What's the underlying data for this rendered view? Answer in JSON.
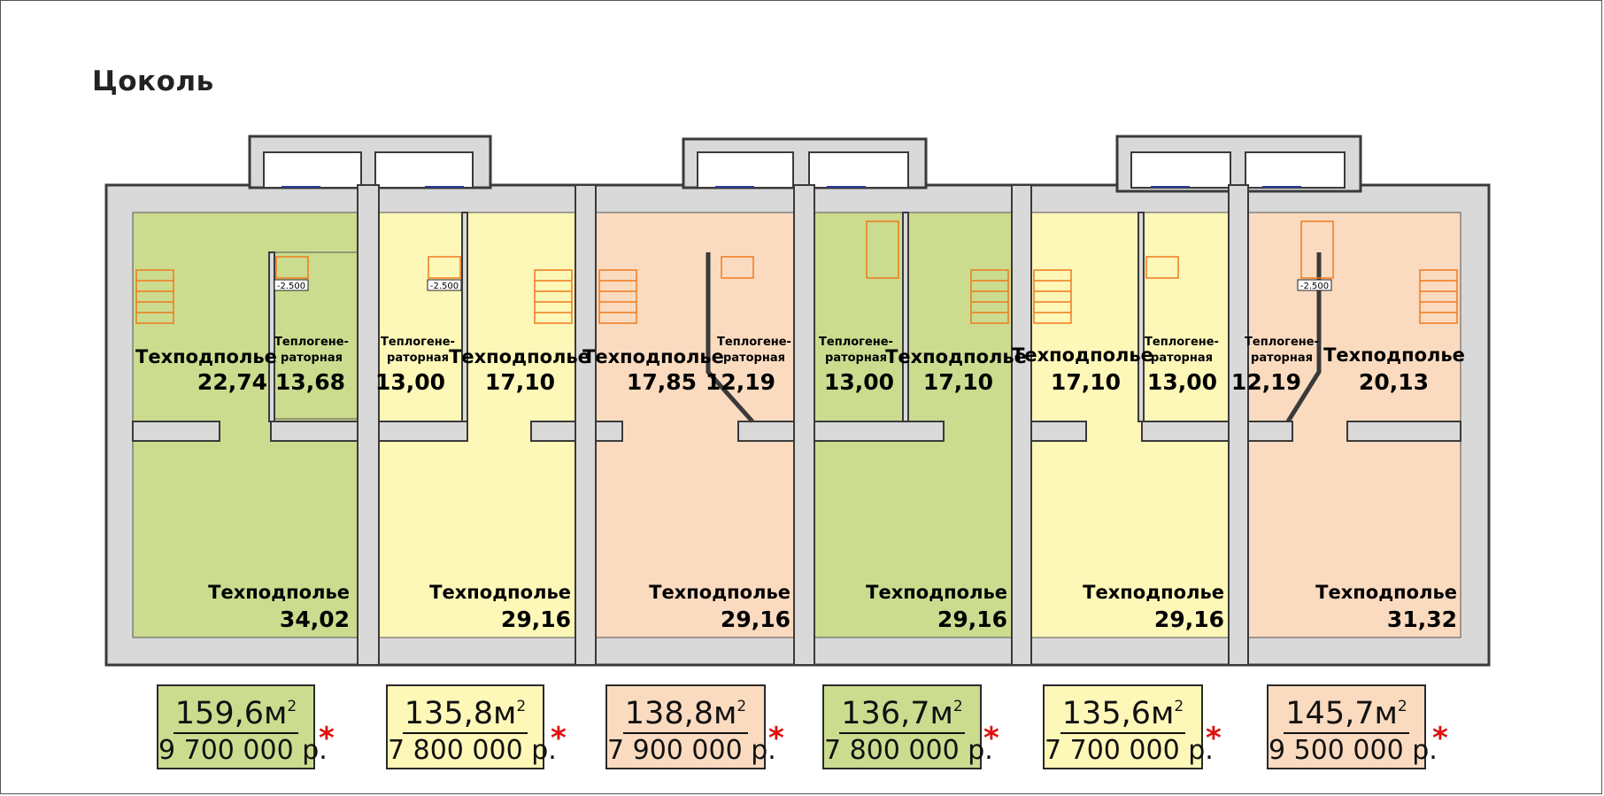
{
  "title": "Цоколь",
  "colors": {
    "green": "#cbdc8f",
    "yellow": "#fdf7b8",
    "peach": "#fbdbc0",
    "wall": "#d9d9d9",
    "stair": "#f07a1e"
  },
  "rooms": [
    {
      "label": "Техподполье",
      "area": "22,74"
    },
    {
      "label": "Теплогене-",
      "label2": "раторная",
      "area": "13,68"
    },
    {
      "label": "Теплогене-",
      "label2": "раторная",
      "area": "13,00"
    },
    {
      "label": "Техподполье",
      "area": "17,10"
    },
    {
      "label": "Техподполье",
      "area": "17,85"
    },
    {
      "label": "Теплогене-",
      "label2": "раторная",
      "area": "12,19"
    },
    {
      "label": "Теплогене-",
      "label2": "раторная",
      "area": "13,00"
    },
    {
      "label": "Техподполье",
      "area": "17,10"
    },
    {
      "label": "Техподполье",
      "area": "17,10"
    },
    {
      "label": "Теплогене-",
      "label2": "раторная",
      "area": "13,00"
    },
    {
      "label": "Теплогене-",
      "label2": "раторная",
      "area": "12,19"
    },
    {
      "label": "Техподполье",
      "area": "20,13"
    },
    {
      "label": "Техподполье",
      "area": "34,02"
    },
    {
      "label": "Техподполье",
      "area": "29,16"
    },
    {
      "label": "Техподполье",
      "area": "29,16"
    },
    {
      "label": "Техподполье",
      "area": "29,16"
    },
    {
      "label": "Техподполье",
      "area": "29,16"
    },
    {
      "label": "Техподполье",
      "area": "31,32"
    }
  ],
  "levels": [
    "-2.500",
    "-2.500",
    "-2.500"
  ],
  "units": [
    {
      "area": "159,6м",
      "sup": "2",
      "price": "9 700 000 р.",
      "star": "*",
      "color": "#cbdc8f"
    },
    {
      "area": "135,8м",
      "sup": "2",
      "price": "7 800 000 р.",
      "star": "*",
      "color": "#fdf7b8"
    },
    {
      "area": "138,8м",
      "sup": "2",
      "price": "7 900 000 р.",
      "star": "*",
      "color": "#fbdbc0"
    },
    {
      "area": "136,7м",
      "sup": "2",
      "price": "7 800 000 р.",
      "star": "*",
      "color": "#cbdc8f"
    },
    {
      "area": "135,6м",
      "sup": "2",
      "price": "7 700 000 р.",
      "star": "*",
      "color": "#fdf7b8"
    },
    {
      "area": "145,7м",
      "sup": "2",
      "price": "9 500 000 р.",
      "star": "*",
      "color": "#fbdbc0"
    }
  ]
}
